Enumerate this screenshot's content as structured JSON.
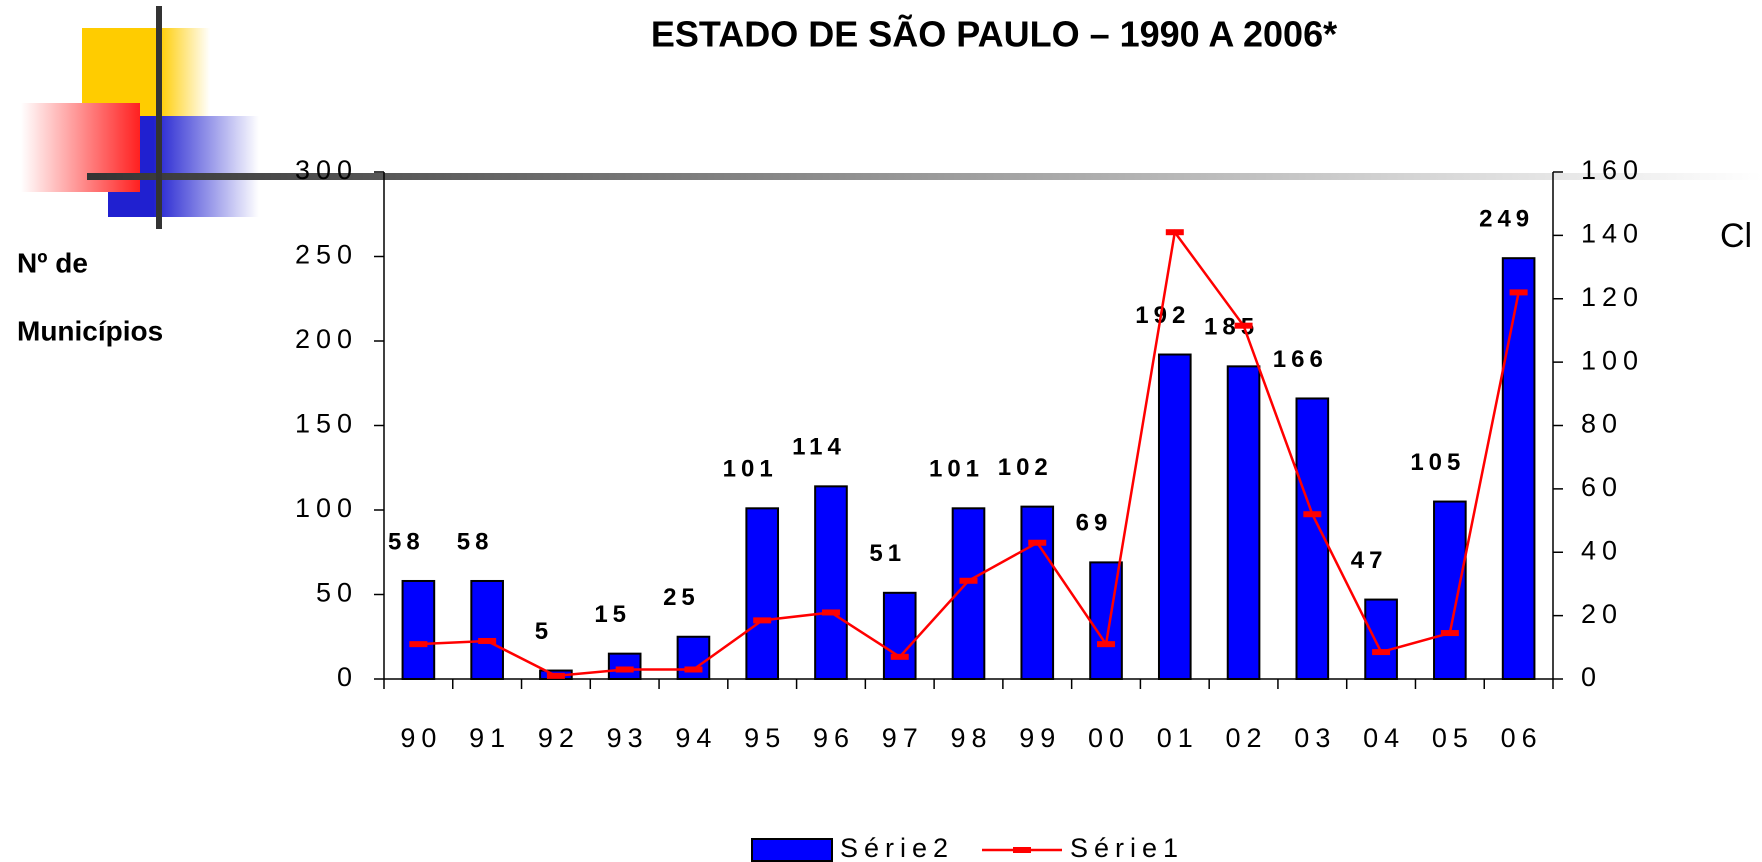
{
  "chart_data": {
    "type": "bar_line",
    "title": "ESTADO DE SÃO PAULO – 1990 A 2006*",
    "y_label": [
      "Nº de",
      "Municípios"
    ],
    "y2_label": "Cl",
    "categories": [
      "90",
      "91",
      "92",
      "93",
      "94",
      "95",
      "96",
      "97",
      "98",
      "99",
      "00",
      "01",
      "02",
      "03",
      "04",
      "05",
      "06"
    ],
    "series": [
      {
        "name": "Série2",
        "type": "bar",
        "color": "#0000ff",
        "values": [
          58,
          58,
          5,
          15,
          25,
          101,
          114,
          51,
          101,
          102,
          69,
          192,
          185,
          166,
          47,
          105,
          249
        ]
      },
      {
        "name": "Série1",
        "type": "line",
        "axis": "y2",
        "color": "#ff0000",
        "values": [
          11,
          12,
          1,
          3,
          3,
          18.5,
          21,
          7,
          31,
          43,
          11,
          141,
          111.5,
          52,
          8.5,
          14.5,
          122
        ]
      }
    ],
    "ylim": [
      0,
      300
    ],
    "yticks": [
      0,
      50,
      100,
      150,
      200,
      250,
      300
    ],
    "y2lim": [
      0,
      160
    ],
    "y2ticks": [
      0,
      20,
      40,
      60,
      80,
      100,
      120,
      140,
      160
    ],
    "legend": "bottom"
  }
}
